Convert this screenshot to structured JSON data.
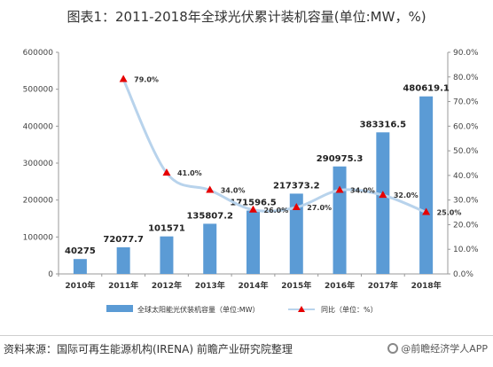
{
  "title": "图表1：2011-2018年全球光伏累计装机容量(单位:MW，%)",
  "source": "资料来源：国际可再生能源机构(IRENA) 前瞻产业研究院整理",
  "brand": "@前瞻经济学人APP",
  "colors": {
    "bar": "#5b9bd5",
    "line": "#b8d3ec",
    "marker": "#e60000"
  },
  "chart_data": {
    "type": "bar",
    "title": "图表1：2011-2018年全球光伏累计装机容量(单位:MW，%)",
    "categories": [
      "2010年",
      "2011年",
      "2012年",
      "2013年",
      "2014年",
      "2015年",
      "2016年",
      "2017年",
      "2018年"
    ],
    "series": [
      {
        "name": "全球太阳能光伏装机容量（单位:MW）",
        "type": "bar",
        "axis": "left",
        "values": [
          40275,
          72077.7,
          101571,
          135807.2,
          171596.5,
          217373.2,
          290975.3,
          383316.5,
          480619.1
        ],
        "labels": [
          "40275",
          "72077.7",
          "101571",
          "135807.2",
          "171596.5",
          "217373.2",
          "290975.3",
          "383316.5",
          "480619.1"
        ]
      },
      {
        "name": "同比（单位：%）",
        "type": "line",
        "axis": "right",
        "values": [
          null,
          79.0,
          41.0,
          34.0,
          26.0,
          27.0,
          34.0,
          32.0,
          25.0
        ],
        "labels": [
          "",
          "79.0%",
          "41.0%",
          "34.0%",
          "26.0%",
          "27.0%",
          "34.0%",
          "32.0%",
          "25.0%"
        ]
      }
    ],
    "ylim_left": [
      0,
      600000
    ],
    "yticks_left": [
      "0",
      "100000",
      "200000",
      "300000",
      "400000",
      "500000",
      "600000"
    ],
    "ylim_right": [
      0,
      90
    ],
    "yticks_right": [
      "0.0%",
      "10.0%",
      "20.0%",
      "30.0%",
      "40.0%",
      "50.0%",
      "60.0%",
      "70.0%",
      "80.0%",
      "90.0%"
    ],
    "grid": false,
    "legend_position": "bottom"
  }
}
